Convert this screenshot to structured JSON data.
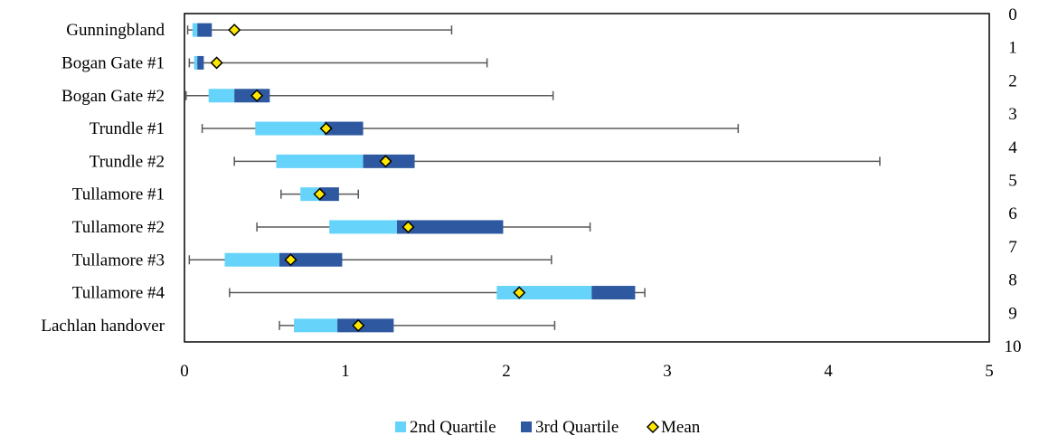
{
  "chart_data": {
    "type": "box",
    "orientation": "horizontal",
    "categories": [
      "Gunningbland",
      "Bogan Gate #1",
      "Bogan Gate #2",
      "Trundle #1",
      "Trundle #2",
      "Tullamore #1",
      "Tullamore #2",
      "Tullamore #3",
      "Tullamore #4",
      "Lachlan handover"
    ],
    "series": [
      {
        "name": "2nd Quartile",
        "color": "#66D4FA",
        "ranges": [
          [
            0.05,
            0.08
          ],
          [
            0.06,
            0.08
          ],
          [
            0.15,
            0.31
          ],
          [
            0.44,
            0.87
          ],
          [
            0.57,
            1.11
          ],
          [
            0.72,
            0.84
          ],
          [
            0.9,
            1.32
          ],
          [
            0.25,
            0.59
          ],
          [
            1.94,
            2.53
          ],
          [
            0.68,
            0.95
          ]
        ]
      },
      {
        "name": "3rd Quartile",
        "color": "#2E58A0",
        "ranges": [
          [
            0.08,
            0.17
          ],
          [
            0.08,
            0.12
          ],
          [
            0.31,
            0.53
          ],
          [
            0.87,
            1.11
          ],
          [
            1.11,
            1.43
          ],
          [
            0.84,
            0.96
          ],
          [
            1.32,
            1.98
          ],
          [
            0.59,
            0.98
          ],
          [
            2.53,
            2.8
          ],
          [
            0.95,
            1.3
          ]
        ]
      },
      {
        "name": "Mean",
        "color": "#FFE800",
        "values": [
          0.31,
          0.2,
          0.45,
          0.88,
          1.25,
          0.84,
          1.39,
          0.66,
          2.08,
          1.08
        ]
      }
    ],
    "whiskers": [
      [
        0.02,
        1.66
      ],
      [
        0.03,
        1.88
      ],
      [
        0.01,
        2.29
      ],
      [
        0.11,
        3.44
      ],
      [
        0.31,
        4.32
      ],
      [
        0.6,
        1.08
      ],
      [
        0.45,
        2.52
      ],
      [
        0.03,
        2.28
      ],
      [
        0.28,
        2.86
      ],
      [
        0.59,
        2.3
      ]
    ],
    "xticks": [
      "0",
      "1",
      "2",
      "3",
      "4",
      "5"
    ],
    "xlim": [
      0,
      5
    ],
    "y2ticks": [
      "0",
      "1",
      "2",
      "3",
      "4",
      "5",
      "6",
      "7",
      "8",
      "9",
      "10"
    ],
    "grid": false,
    "legend": "bottom"
  }
}
